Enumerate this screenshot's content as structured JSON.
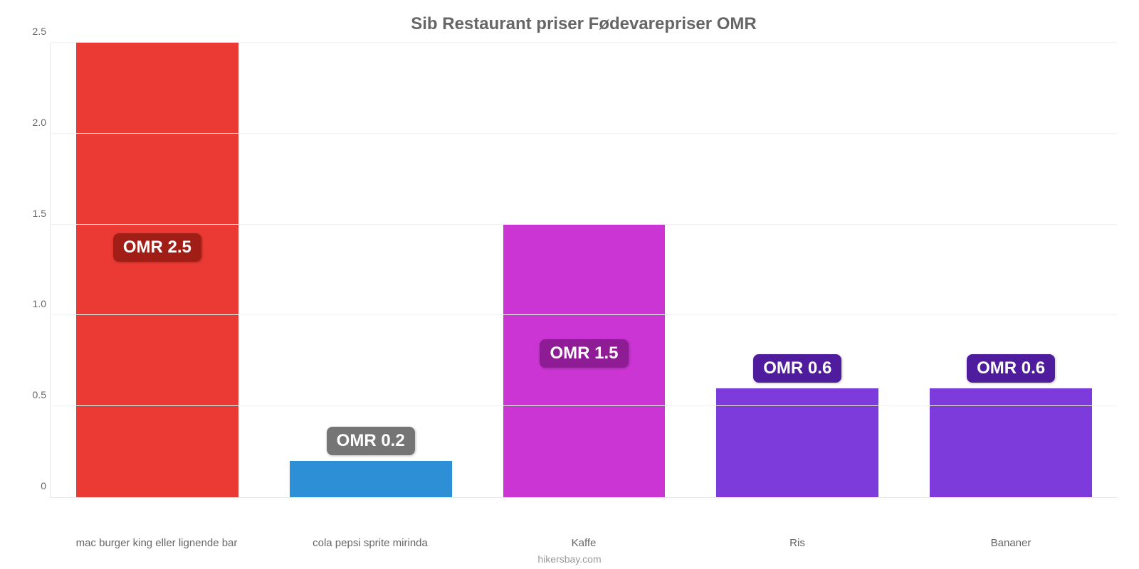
{
  "chart": {
    "type": "bar",
    "title": "Sib Restaurant priser Fødevarepriser OMR",
    "title_color": "#666666",
    "title_fontsize": 24,
    "background_color": "#ffffff",
    "grid_color": "#f3f3f3",
    "axis_color": "#e8e8e8",
    "label_color": "#666666",
    "label_fontsize": 15,
    "bar_width_pct": 76,
    "ylim": [
      0,
      2.5
    ],
    "yticks": [
      0,
      0.5,
      1.0,
      1.5,
      2.0,
      2.5
    ],
    "ytick_labels": [
      "0",
      "0.5",
      "1.0",
      "1.5",
      "2.0",
      "2.5"
    ],
    "categories": [
      "mac burger king eller lignende bar",
      "cola pepsi sprite mirinda",
      "Kaffe",
      "Ris",
      "Bananer"
    ],
    "values": [
      2.5,
      0.2,
      1.5,
      0.6,
      0.6
    ],
    "value_labels": [
      "OMR 2.5",
      "OMR 0.2",
      "OMR 1.5",
      "OMR 0.6",
      "OMR 0.6"
    ],
    "bar_colors": [
      "#eb3a33",
      "#2d8fd6",
      "#cb35d4",
      "#7c3bda",
      "#7c3bda"
    ],
    "badge_colors": [
      "#a11e16",
      "#757575",
      "#8e1c95",
      "#4f1c9e",
      "#4f1c9e"
    ],
    "badge_text_color": "#ffffff",
    "badge_fontsize": 24,
    "watermark": "hikersbay.com",
    "watermark_color": "#999999"
  }
}
